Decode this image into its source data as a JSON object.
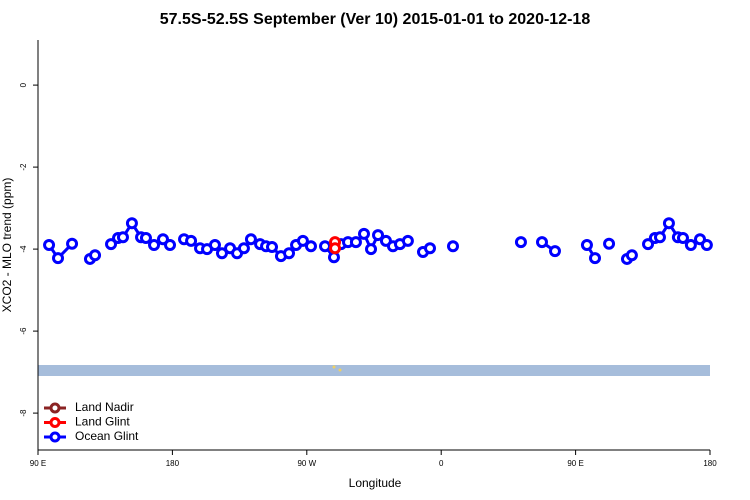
{
  "chart_data": {
    "type": "line",
    "title": "57.5S-52.5S September (Ver 10)   2015-01-01 to 2020-12-18",
    "x_label": "Longitude",
    "y_label": "XCO2 - MLO trend (ppm)",
    "xlim": [
      90,
      540
    ],
    "ylim": [
      -8.9,
      1.1
    ],
    "xticks": [
      {
        "value": 90,
        "label": "90 E"
      },
      180,
      {
        "value": 270,
        "label": "90 W"
      },
      {
        "value": 360,
        "label": "0"
      },
      {
        "value": 450,
        "label": "90 E"
      },
      {
        "value": 540,
        "label": "180"
      }
    ],
    "yticks": [
      0,
      -2,
      -4,
      -6,
      -8
    ],
    "legend": "bottom-left",
    "series": [
      {
        "name": "Land Nadir",
        "color": "#8b2323",
        "x": [],
        "values": []
      },
      {
        "name": "Land Glint",
        "color": "#ff0000",
        "x": [
          288.9,
          288.9
        ],
        "values": [
          -3.83,
          -3.98
        ]
      },
      {
        "name": "Ocean Glint",
        "color": "#0000ff",
        "x": [
          97.4,
          103.4,
          112.8,
          null,
          124.8,
          128.2,
          null,
          138.9,
          143.6,
          146.9,
          152.9,
          159.0,
          162.3,
          167.7,
          173.7,
          178.4,
          null,
          187.8,
          192.5,
          198.5,
          203.2,
          208.5,
          213.2,
          218.6,
          223.3,
          227.9,
          232.6,
          238.7,
          242.7,
          246.7,
          252.7,
          258.1,
          262.8,
          267.4,
          272.8,
          null,
          282.2,
          288.2,
          292.9,
          297.6,
          302.9,
          308.3,
          313.0,
          317.7,
          323.0,
          327.7,
          332.4,
          337.7,
          null,
          347.8,
          352.5,
          null,
          367.9,
          null,
          413.4,
          null,
          427.5,
          436.2,
          null,
          457.6,
          463.0,
          null,
          472.4,
          null,
          484.4,
          487.7,
          null,
          498.5,
          503.1,
          506.5,
          512.5,
          518.5,
          521.9,
          527.2,
          533.3,
          537.9
        ],
        "values": [
          -3.9,
          -4.22,
          -3.87,
          null,
          -4.24,
          -4.15,
          null,
          -3.88,
          -3.73,
          -3.71,
          -3.37,
          -3.71,
          -3.73,
          -3.9,
          -3.76,
          -3.9,
          null,
          -3.76,
          -3.8,
          -3.98,
          -4.0,
          -3.9,
          -4.1,
          -3.98,
          -4.1,
          -3.98,
          -3.76,
          -3.88,
          -3.93,
          -3.95,
          -4.17,
          -4.1,
          -3.9,
          -3.8,
          -3.93,
          null,
          -3.93,
          -4.2,
          -3.88,
          -3.83,
          -3.83,
          -3.63,
          -4.0,
          -3.66,
          -3.8,
          -3.93,
          -3.88,
          -3.8,
          null,
          -4.07,
          -3.98,
          null,
          -3.93,
          null,
          -3.83,
          null,
          -3.83,
          -4.05,
          null,
          -3.9,
          -4.22,
          null,
          -3.87,
          null,
          -4.24,
          -4.15,
          null,
          -3.88,
          -3.73,
          -3.71,
          -3.37,
          -3.71,
          -3.73,
          -3.9,
          -3.76,
          -3.9
        ]
      }
    ]
  }
}
